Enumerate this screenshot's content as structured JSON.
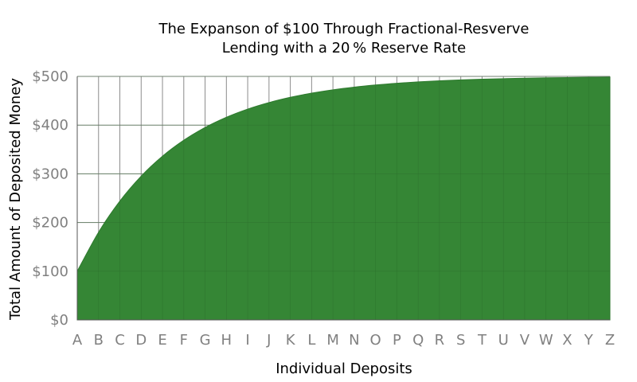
{
  "chart_data": {
    "type": "area",
    "title": [
      "The Expanson of $100 Through Fractional-Resverve",
      "Lending with a 20 % Reserve Rate"
    ],
    "xlabel": "Individual Deposits",
    "ylabel": "Total Amount of Deposited Money",
    "categories": [
      "A",
      "B",
      "C",
      "D",
      "E",
      "F",
      "G",
      "H",
      "I",
      "J",
      "K",
      "L",
      "M",
      "N",
      "O",
      "P",
      "Q",
      "R",
      "S",
      "T",
      "U",
      "V",
      "W",
      "X",
      "Y",
      "Z"
    ],
    "y_ticks": [
      "$0",
      "$100",
      "$200",
      "$300",
      "$400",
      "$500"
    ],
    "ylim": [
      0,
      500
    ],
    "initial_deposit": 100,
    "reserve_rate": 0.2,
    "series": [
      {
        "values": [
          100,
          180,
          244,
          295.2,
          336.16,
          368.93,
          395.14,
          416.11,
          432.89,
          446.31,
          457.05,
          465.64,
          472.51,
          478.01,
          482.41,
          485.93,
          488.74,
          490.99,
          492.79,
          494.24,
          495.39,
          496.31,
          497.05,
          497.64,
          498.11,
          498.49
        ]
      }
    ],
    "grid": true,
    "colors": {
      "fill": "#358635",
      "edge": "#2e7a2e",
      "grid": "#8c8c8c",
      "axis": "#555555"
    }
  }
}
